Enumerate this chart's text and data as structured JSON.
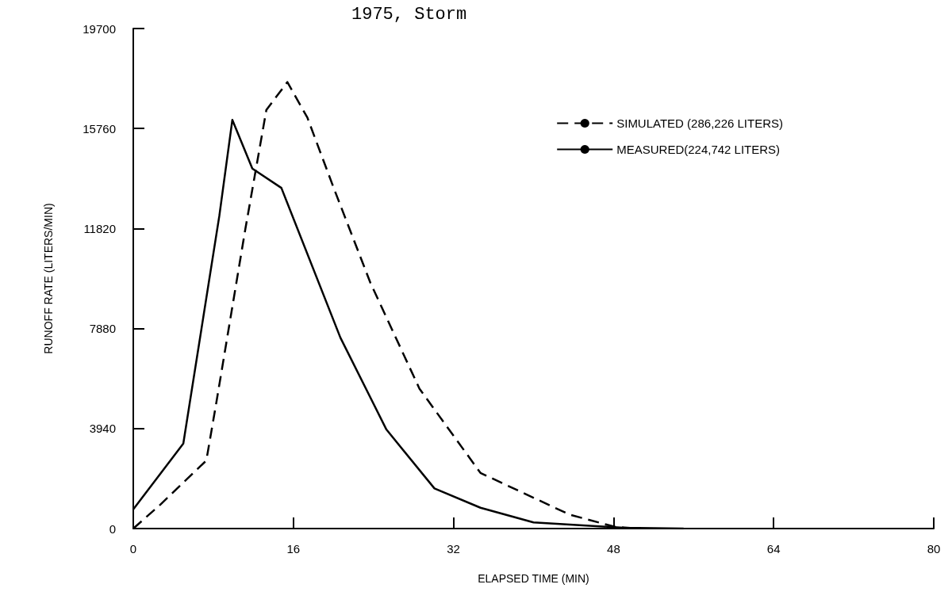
{
  "chart_data": {
    "type": "line",
    "title": "1975, Storm",
    "xlabel": "ELAPSED TIME (MIN)",
    "ylabel": "RUNOFF RATE (LITERS/MIN)",
    "xlim": [
      0,
      80
    ],
    "xticks": [
      0,
      16,
      32,
      48,
      64,
      80
    ],
    "ylim": [
      0,
      19700
    ],
    "yticks": [
      0,
      3940,
      7880,
      11820,
      15760,
      19700
    ],
    "grid": false,
    "legend": "top right",
    "marker": "none",
    "series": [
      {
        "name": "SIMULATED (286,226 LITERS)",
        "color": "#000000",
        "line_style": "dashed",
        "x": [
          0,
          2.7,
          7.3,
          8.3,
          11.2,
          13.3,
          15.4,
          17.4,
          20,
          23.7,
          28.6,
          34.7,
          43.6,
          48.2,
          50.5
        ],
        "values": [
          0,
          940,
          2680,
          4960,
          11800,
          16490,
          17590,
          16190,
          13450,
          9680,
          5510,
          2190,
          550,
          60,
          0
        ]
      },
      {
        "name": "MEASURED(224,742 LITERS)",
        "color": "#000000",
        "line_style": "solid",
        "x": [
          0,
          5,
          8.6,
          9.9,
          11.9,
          14.8,
          20.7,
          25.3,
          30.1,
          34.7,
          40,
          49,
          55
        ],
        "values": [
          760,
          3350,
          12320,
          16100,
          14180,
          13420,
          7520,
          3900,
          1580,
          820,
          240,
          30,
          0
        ]
      }
    ]
  }
}
